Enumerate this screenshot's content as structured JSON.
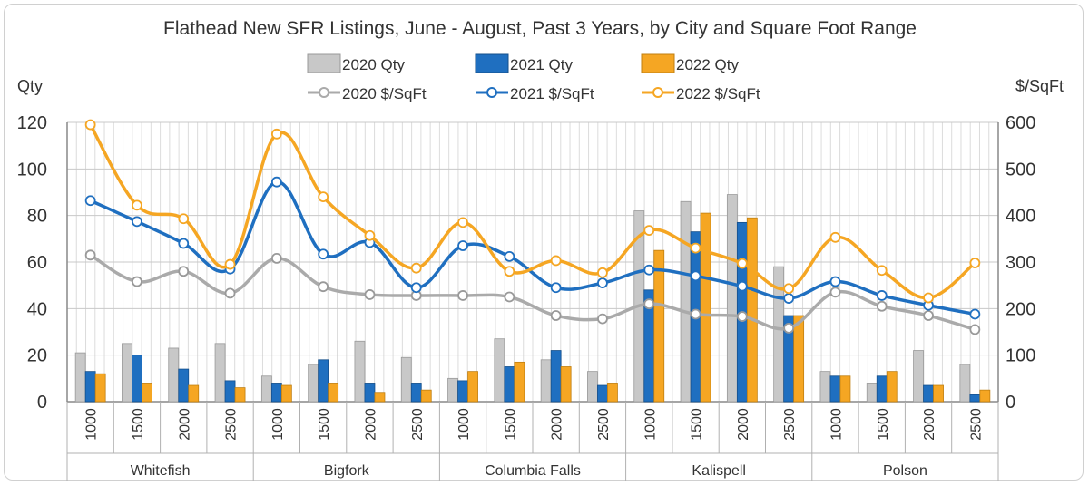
{
  "chart_data": {
    "type": "bar",
    "title": "Flathead New SFR Listings, June - August, Past 3 Years, by City and Square Foot Range",
    "ylabel": "Qty",
    "y2label": "$/SqFt",
    "ylim": [
      0,
      120
    ],
    "y2lim": [
      0,
      600
    ],
    "yticks": [
      "0",
      "20",
      "40",
      "60",
      "80",
      "100",
      "120"
    ],
    "y2ticks": [
      "0",
      "100",
      "200",
      "300",
      "400",
      "500",
      "600"
    ],
    "groups": [
      "Whitefish",
      "Bigfork",
      "Columbia Falls",
      "Kalispell",
      "Polson"
    ],
    "sizes": [
      "1000",
      "1500",
      "2000",
      "2500"
    ],
    "grid": true,
    "legend_position": "top",
    "bar_series": [
      {
        "name": "2020 Qty",
        "color": "#c8c8c8",
        "values": [
          21,
          25,
          23,
          25,
          11,
          16,
          26,
          19,
          10,
          27,
          18,
          13,
          82,
          86,
          89,
          58,
          13,
          8,
          22,
          16
        ]
      },
      {
        "name": "2021 Qty",
        "color": "#1f6fc0",
        "values": [
          13,
          20,
          14,
          9,
          8,
          18,
          8,
          8,
          9,
          15,
          22,
          7,
          48,
          73,
          77,
          37,
          11,
          11,
          7,
          3
        ]
      },
      {
        "name": "2022 Qty",
        "color": "#f5a623",
        "values": [
          12,
          8,
          7,
          6,
          7,
          8,
          4,
          5,
          13,
          17,
          15,
          8,
          65,
          81,
          79,
          37,
          11,
          13,
          7,
          5
        ]
      }
    ],
    "line_series": [
      {
        "name": "2020 $/SqFt",
        "color": "#aaaaaa",
        "values": [
          315,
          258,
          280,
          233,
          308,
          247,
          230,
          228,
          228,
          225,
          185,
          178,
          210,
          188,
          183,
          158,
          235,
          205,
          185,
          155
        ]
      },
      {
        "name": "2021 $/SqFt",
        "color": "#1f6fc0",
        "values": [
          432,
          387,
          340,
          285,
          472,
          317,
          342,
          245,
          335,
          312,
          245,
          255,
          283,
          270,
          248,
          222,
          258,
          228,
          207,
          188
        ]
      },
      {
        "name": "2022 $/SqFt",
        "color": "#f5a623",
        "values": [
          595,
          422,
          393,
          295,
          575,
          440,
          357,
          287,
          385,
          280,
          303,
          277,
          368,
          330,
          297,
          243,
          353,
          282,
          223,
          298
        ]
      }
    ]
  }
}
